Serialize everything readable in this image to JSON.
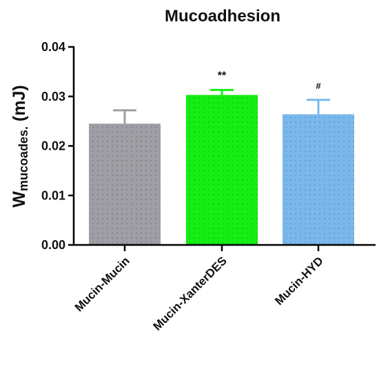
{
  "chart_data": {
    "type": "bar",
    "title": "Mucoadhesion",
    "ylabel_main": "W",
    "ylabel_sub": "mucoades.",
    "ylabel_unit": " (mJ)",
    "ylim": [
      0,
      0.04
    ],
    "yticks": [
      "0.00",
      "0.01",
      "0.02",
      "0.03",
      "0.04"
    ],
    "ytick_values": [
      0,
      0.01,
      0.02,
      0.03,
      0.04
    ],
    "categories": [
      "Mucin-Mucin",
      "Mucin-XanterDES",
      "Mucin-HYD"
    ],
    "values": [
      0.0245,
      0.0303,
      0.0264
    ],
    "errors": [
      0.0027,
      0.001,
      0.0029
    ],
    "significance": [
      "",
      "**",
      "#"
    ],
    "colors": [
      "#a09ea5",
      "#14ee14",
      "#7ab8ec"
    ],
    "grid": false
  }
}
